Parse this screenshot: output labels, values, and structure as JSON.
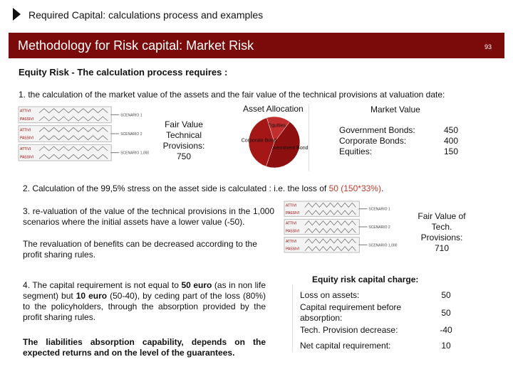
{
  "header": {
    "title": "Required Capital: calculations process and examples"
  },
  "banner": {
    "title": "Methodology for Risk capital: Market Risk",
    "page": "93"
  },
  "section_title": "Equity Risk - The calculation process requires :",
  "step1": {
    "text": "1. the calculation of the market value of the assets and the fair value of the technical provisions at valuation date:",
    "diagram": {
      "assets": "ATTIVI",
      "liabilities": "PASSIVI",
      "scenarios": [
        "SCENARIO 1",
        "SCENARIO 2",
        "SCENARIO 1,000"
      ]
    },
    "fair_value": [
      "Fair Value",
      "Technical",
      "Provisions:",
      "750"
    ],
    "asset_allocation": {
      "title": "Asset Allocation",
      "labels": [
        "Equities",
        "Government Bond",
        "Corporate Bond"
      ]
    },
    "market_value": {
      "title": "Market Value",
      "rows": [
        {
          "label": "Government Bonds:",
          "value": 450
        },
        {
          "label": "Corporate Bonds:",
          "value": 400
        },
        {
          "label": "Equities:",
          "value": 150
        }
      ]
    }
  },
  "step2": {
    "text": "2. Calculation of the 99,5% stress on the asset side is calculated : i.e. the loss of ",
    "highlight": "50 (150*33%)",
    "end": "."
  },
  "step3": {
    "text": "3. re-valuation of the value of the technical provisions in the 1,000 scenarios where the initial assets have a lower value (-50).",
    "note": "The revaluation of benefits can be decreased according to the profit sharing rules.",
    "diagram": {
      "assets": "ATTIVI",
      "liabilities": "PASSIVI",
      "scenarios": [
        "SCENARIO 1",
        "SCENARIO 2",
        "SCENARIO 1,000"
      ]
    },
    "fair_value": [
      "Fair Value of",
      "Tech.",
      "Provisions:",
      "710"
    ]
  },
  "step4": {
    "parts": [
      "4. The capital requirement is not equal to ",
      "50 euro",
      " (as in non life segment) but ",
      "10 euro",
      " (50-40), by ceding part of the loss (80%) to the policyholders, through the absorption provided by the profit sharing rules."
    ],
    "note": "The liabilities absorption capability, depends on the expected returns and on the level of the guarantees."
  },
  "capital_charge": {
    "title": "Equity risk capital charge:",
    "rows": [
      {
        "label": "Loss on assets:",
        "value": "50"
      },
      {
        "label": "Capital requirement before absorption:",
        "value": "50"
      },
      {
        "label": "Tech. Provision decrease:",
        "value": "-40"
      },
      {
        "label": "Net capital requirement:",
        "value": "10"
      }
    ]
  }
}
